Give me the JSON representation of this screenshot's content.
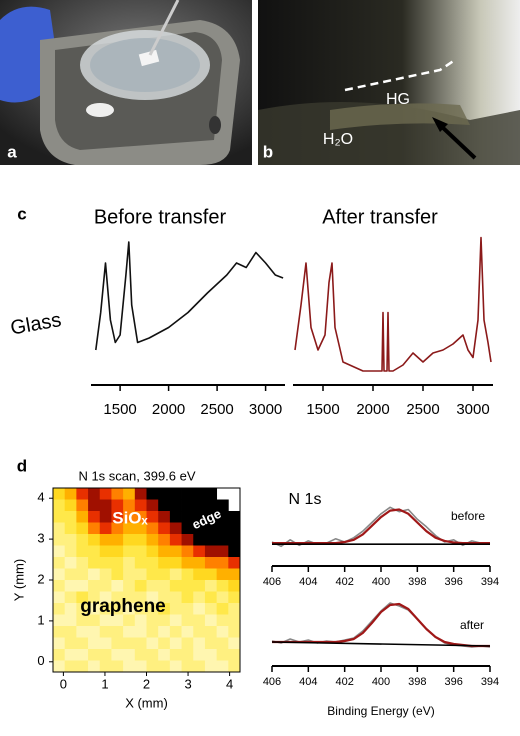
{
  "panel_labels": [
    "a",
    "b",
    "c",
    "d"
  ],
  "photo_b_labels": [
    "HG",
    "H₂O"
  ],
  "chart_data": [
    {
      "type": "line",
      "title": "Before transfer",
      "ylabel": "Glass",
      "x": [
        1250,
        1300,
        1350,
        1400,
        1450,
        1500,
        1560,
        1590,
        1620,
        1680,
        1800,
        2000,
        2200,
        2400,
        2600,
        2700,
        2800,
        2900,
        3000,
        3100,
        3180
      ],
      "series": [
        {
          "color": "#111111",
          "values": [
            20,
            45,
            78,
            40,
            25,
            30,
            70,
            92,
            50,
            25,
            28,
            35,
            45,
            58,
            70,
            78,
            75,
            85,
            78,
            70,
            68
          ]
        }
      ],
      "xlim": [
        1200,
        3200
      ],
      "ylim": [
        0,
        100
      ],
      "xticks": [
        1500,
        2000,
        2500,
        3000
      ]
    },
    {
      "type": "line",
      "title": "After transfer",
      "x": [
        1220,
        1280,
        1330,
        1380,
        1450,
        1520,
        1560,
        1590,
        1620,
        1700,
        1900,
        2090,
        2100,
        2110,
        2140,
        2150,
        2160,
        2200,
        2300,
        2400,
        2500,
        2600,
        2700,
        2800,
        2900,
        2950,
        3000,
        3050,
        3080,
        3110,
        3150,
        3180
      ],
      "series": [
        {
          "color": "#8b1a1a",
          "values": [
            20,
            50,
            78,
            35,
            20,
            30,
            65,
            78,
            35,
            12,
            6,
            6,
            45,
            6,
            6,
            45,
            6,
            6,
            10,
            18,
            12,
            18,
            20,
            24,
            30,
            20,
            15,
            40,
            95,
            40,
            25,
            12
          ]
        }
      ],
      "xlim": [
        1200,
        3200
      ],
      "ylim": [
        0,
        100
      ],
      "xticks": [
        1500,
        2000,
        2500,
        3000
      ]
    },
    {
      "type": "heatmap",
      "title": "N 1s scan, 399.6 eV",
      "xlabel": "X (mm)",
      "ylabel": "Y (mm)",
      "annotations": [
        "SiOₓ",
        "edge",
        "graphene"
      ],
      "xlim": [
        -0.25,
        4.25
      ],
      "ylim": [
        -0.25,
        4.25
      ],
      "xticks": [
        0,
        1,
        2,
        3,
        4
      ],
      "yticks": [
        0,
        1,
        2,
        3,
        4
      ],
      "colorscale": [
        "#fffce0",
        "#fff6b0",
        "#fff080",
        "#ffe84a",
        "#ffd820",
        "#ffb000",
        "#ff8000",
        "#e83000",
        "#a01000",
        "#000000"
      ],
      "values": [
        [
          4,
          5,
          7,
          8,
          7,
          6,
          5,
          8,
          9,
          9,
          9,
          9,
          9,
          9,
          null,
          null
        ],
        [
          3,
          4,
          6,
          8,
          8,
          7,
          6,
          7,
          8,
          9,
          9,
          9,
          9,
          9,
          9,
          null
        ],
        [
          3,
          3,
          5,
          7,
          8,
          7,
          6,
          6,
          7,
          8,
          9,
          9,
          9,
          9,
          9,
          9
        ],
        [
          2,
          3,
          4,
          6,
          7,
          6,
          5,
          5,
          6,
          7,
          8,
          9,
          9,
          9,
          9,
          9
        ],
        [
          2,
          2,
          3,
          4,
          5,
          5,
          4,
          4,
          5,
          6,
          7,
          8,
          9,
          9,
          9,
          9
        ],
        [
          1,
          2,
          3,
          3,
          4,
          4,
          3,
          3,
          4,
          5,
          5,
          6,
          7,
          8,
          8,
          9
        ],
        [
          2,
          1,
          2,
          3,
          3,
          3,
          2,
          3,
          3,
          4,
          4,
          5,
          5,
          6,
          6,
          7
        ],
        [
          1,
          2,
          2,
          1,
          2,
          3,
          2,
          2,
          3,
          3,
          2,
          3,
          4,
          4,
          5,
          5
        ],
        [
          2,
          1,
          1,
          2,
          2,
          1,
          2,
          3,
          2,
          2,
          3,
          3,
          3,
          2,
          3,
          4
        ],
        [
          1,
          2,
          3,
          2,
          1,
          2,
          2,
          2,
          1,
          2,
          2,
          3,
          2,
          3,
          2,
          3
        ],
        [
          2,
          1,
          2,
          1,
          2,
          2,
          1,
          2,
          2,
          3,
          2,
          2,
          1,
          2,
          3,
          2
        ],
        [
          1,
          1,
          2,
          2,
          1,
          1,
          2,
          1,
          2,
          2,
          1,
          2,
          2,
          1,
          2,
          2
        ],
        [
          2,
          2,
          1,
          1,
          2,
          2,
          1,
          1,
          2,
          1,
          2,
          1,
          2,
          2,
          1,
          2
        ],
        [
          1,
          2,
          2,
          1,
          1,
          2,
          2,
          2,
          1,
          2,
          1,
          2,
          1,
          2,
          2,
          1
        ],
        [
          2,
          1,
          1,
          2,
          2,
          1,
          1,
          2,
          2,
          1,
          2,
          2,
          1,
          1,
          2,
          2
        ],
        [
          1,
          2,
          2,
          1,
          2,
          2,
          1,
          1,
          2,
          2,
          1,
          2,
          2,
          1,
          1,
          2
        ]
      ]
    },
    {
      "type": "line",
      "annotations": [
        "N 1s",
        "before"
      ],
      "x": [
        406,
        405.5,
        405,
        404.5,
        404,
        403.5,
        403,
        402.5,
        402,
        401.5,
        401,
        400.5,
        400,
        399.5,
        399,
        398.5,
        398,
        397.5,
        397,
        396.5,
        396,
        395.5,
        395,
        394.5,
        394
      ],
      "series": [
        {
          "color": "#888888",
          "values": [
            12,
            8,
            14,
            9,
            13,
            10,
            11,
            15,
            12,
            16,
            22,
            30,
            38,
            44,
            40,
            42,
            33,
            26,
            18,
            12,
            14,
            9,
            13,
            11,
            10
          ]
        },
        {
          "color": "#a01818",
          "values": [
            11,
            11,
            11,
            11,
            11,
            11,
            11,
            11,
            12,
            14,
            19,
            27,
            35,
            41,
            42,
            38,
            30,
            22,
            16,
            13,
            11.5,
            11,
            11,
            11,
            11
          ]
        },
        {
          "color": "#000000",
          "x": [
            406,
            394
          ],
          "values": [
            10,
            10
          ]
        }
      ],
      "xlim": [
        406,
        394
      ],
      "ylim": [
        0,
        60
      ],
      "xticks": [
        406,
        404,
        402,
        400,
        398,
        396,
        394
      ]
    },
    {
      "type": "line",
      "annotations": [
        "after"
      ],
      "xlabel": "Binding Energy (eV)",
      "x": [
        406,
        405.5,
        405,
        404.5,
        404,
        403.5,
        403,
        402.5,
        402,
        401.5,
        401,
        400.5,
        400,
        399.5,
        399,
        398.5,
        398,
        397.5,
        397,
        396.5,
        396,
        395.5,
        395,
        394.5,
        394
      ],
      "series": [
        {
          "color": "#888888",
          "values": [
            14,
            12,
            16,
            13,
            15,
            12,
            14,
            13,
            15,
            17,
            24,
            34,
            44,
            52,
            49,
            45,
            36,
            26,
            18,
            12,
            10,
            9,
            8,
            9,
            8
          ]
        },
        {
          "color": "#a01818",
          "values": [
            13,
            13,
            13,
            13,
            13,
            13,
            13,
            13,
            14,
            16,
            22,
            32,
            43,
            50,
            51,
            46,
            36,
            26,
            18,
            13,
            11,
            10,
            9,
            9,
            9
          ]
        },
        {
          "color": "#000000",
          "x": [
            406,
            394
          ],
          "values": [
            13,
            9
          ]
        }
      ],
      "xlim": [
        406,
        394
      ],
      "ylim": [
        0,
        60
      ],
      "xticks": [
        406,
        404,
        402,
        400,
        398,
        396,
        394
      ]
    }
  ]
}
